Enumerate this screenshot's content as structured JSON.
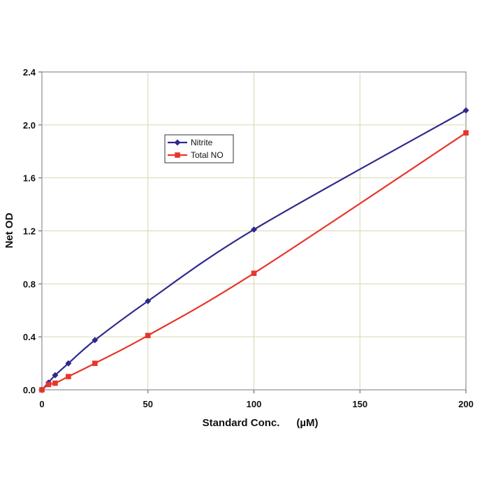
{
  "chart_data": {
    "type": "line",
    "title": "",
    "xlabel": "Standard Conc.",
    "xlabel_unit": "(µM)",
    "ylabel": "Net OD",
    "xlim": [
      0,
      200
    ],
    "ylim": [
      0,
      2.4
    ],
    "xticks": [
      "0",
      "50",
      "100",
      "150",
      "200"
    ],
    "yticks": [
      "0.0",
      "0.4",
      "0.8",
      "1.2",
      "1.6",
      "2.0",
      "2.4"
    ],
    "grid": true,
    "legend_position": "upper-left-center",
    "series": [
      {
        "name": "Nitrite",
        "color": "#2e2a8c",
        "marker": "diamond",
        "x": [
          0,
          3.125,
          6.25,
          12.5,
          25,
          50,
          100,
          200
        ],
        "y": [
          0.0,
          0.055,
          0.11,
          0.2,
          0.375,
          0.67,
          1.21,
          2.11
        ]
      },
      {
        "name": "Total NO",
        "color": "#e8352a",
        "marker": "square",
        "x": [
          0,
          3.125,
          6.25,
          12.5,
          25,
          50,
          100,
          200
        ],
        "y": [
          0.0,
          0.04,
          0.05,
          0.1,
          0.2,
          0.41,
          0.88,
          1.94
        ]
      }
    ]
  }
}
